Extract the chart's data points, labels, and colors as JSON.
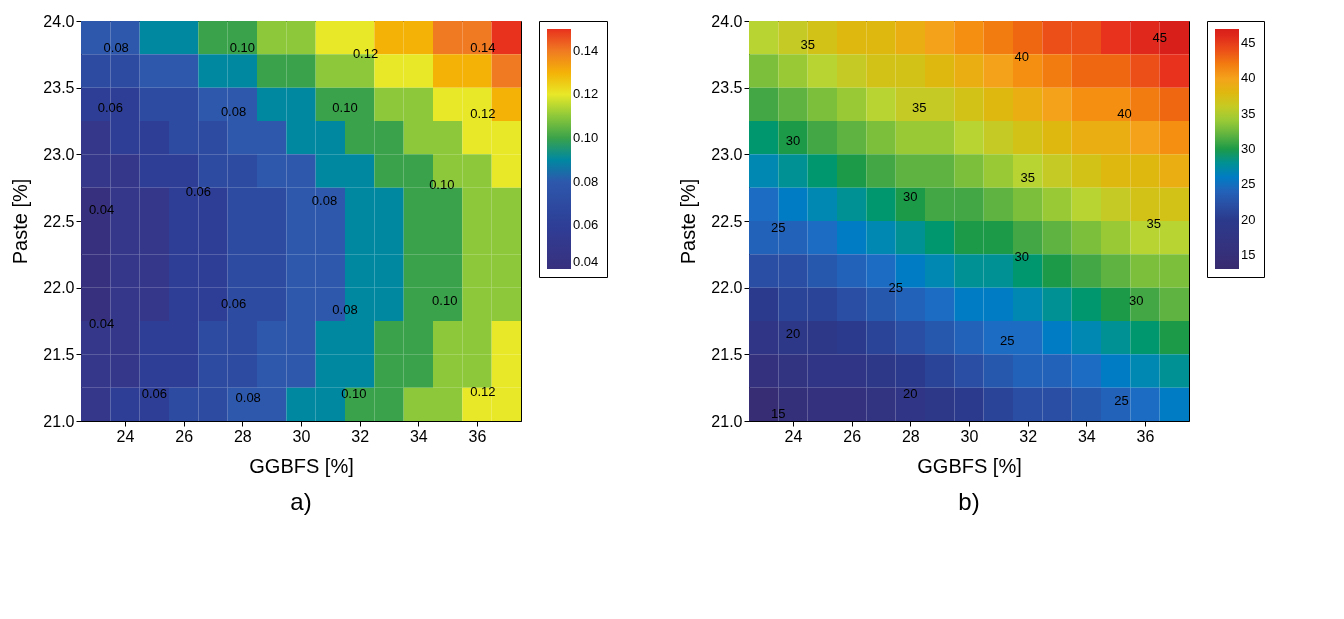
{
  "chart_data": [
    {
      "type": "heatmap",
      "xlabel": "GGBFS [%]",
      "ylabel": "Paste [%]",
      "clim": [
        0.04,
        0.15
      ],
      "annotations": [
        "a)",
        "0.08",
        "0.10",
        "0.12",
        "0.14",
        "0.06",
        "0.08",
        "0.10",
        "0.12",
        "0.06",
        "0.08",
        "0.10",
        "0.04",
        "0.06",
        "0.08",
        "0.10",
        "0.04",
        "0.06",
        "0.08",
        "0.10",
        "0.12"
      ],
      "x": [
        23,
        24,
        25,
        26,
        27,
        28,
        29,
        30,
        31,
        32,
        33,
        34,
        35,
        36,
        37
      ],
      "y": [
        23.875,
        23.625,
        23.375,
        23.125,
        22.875,
        22.625,
        22.375,
        22.125,
        21.875,
        21.625,
        21.375,
        21.125
      ],
      "cells": [
        [
          0.08,
          0.08,
          0.09,
          0.09,
          0.1,
          0.1,
          0.11,
          0.11,
          0.12,
          0.12,
          0.13,
          0.13,
          0.14,
          0.14,
          0.15
        ],
        [
          0.07,
          0.07,
          0.08,
          0.08,
          0.09,
          0.09,
          0.1,
          0.1,
          0.11,
          0.11,
          0.12,
          0.12,
          0.13,
          0.13,
          0.14
        ],
        [
          0.06,
          0.06,
          0.07,
          0.07,
          0.08,
          0.08,
          0.09,
          0.09,
          0.1,
          0.1,
          0.11,
          0.11,
          0.12,
          0.12,
          0.13
        ],
        [
          0.05,
          0.06,
          0.06,
          0.07,
          0.07,
          0.08,
          0.08,
          0.09,
          0.09,
          0.1,
          0.1,
          0.11,
          0.11,
          0.12,
          0.12
        ],
        [
          0.05,
          0.05,
          0.06,
          0.06,
          0.07,
          0.07,
          0.08,
          0.08,
          0.09,
          0.09,
          0.1,
          0.1,
          0.11,
          0.11,
          0.12
        ],
        [
          0.04,
          0.05,
          0.05,
          0.06,
          0.06,
          0.07,
          0.07,
          0.08,
          0.08,
          0.09,
          0.09,
          0.1,
          0.1,
          0.11,
          0.11
        ],
        [
          0.04,
          0.05,
          0.05,
          0.06,
          0.06,
          0.07,
          0.07,
          0.08,
          0.08,
          0.09,
          0.09,
          0.1,
          0.1,
          0.11,
          0.11
        ],
        [
          0.04,
          0.05,
          0.05,
          0.06,
          0.06,
          0.07,
          0.07,
          0.08,
          0.08,
          0.09,
          0.09,
          0.1,
          0.1,
          0.11,
          0.11
        ],
        [
          0.04,
          0.05,
          0.05,
          0.06,
          0.06,
          0.07,
          0.07,
          0.08,
          0.08,
          0.09,
          0.09,
          0.1,
          0.1,
          0.11,
          0.11
        ],
        [
          0.05,
          0.05,
          0.06,
          0.06,
          0.07,
          0.07,
          0.08,
          0.08,
          0.09,
          0.09,
          0.1,
          0.1,
          0.11,
          0.11,
          0.12
        ],
        [
          0.05,
          0.05,
          0.06,
          0.06,
          0.07,
          0.07,
          0.08,
          0.08,
          0.09,
          0.09,
          0.1,
          0.1,
          0.11,
          0.11,
          0.12
        ],
        [
          0.05,
          0.06,
          0.06,
          0.07,
          0.07,
          0.08,
          0.08,
          0.09,
          0.09,
          0.1,
          0.1,
          0.11,
          0.11,
          0.12,
          0.12
        ]
      ],
      "cticks": [
        0.04,
        0.06,
        0.08,
        {
          "value": 0.1,
          "label": "0.10"
        },
        0.12,
        0.14
      ],
      "colors": [
        "#37307e",
        "#2e3e96",
        "#2d58ac",
        "#3aa24a",
        "#e8e828",
        "#f07a22",
        "#e8321e"
      ],
      "xlim": [
        22.5,
        37.5
      ],
      "xticks": [
        24,
        26,
        28,
        30,
        32,
        34,
        36
      ],
      "ylim": [
        21,
        24
      ],
      "yticks": [
        {
          "value": 21,
          "label": "21.0"
        },
        21.5,
        {
          "value": 22,
          "label": "22.0"
        },
        22.5,
        {
          "value": 23,
          "label": "23.0"
        },
        23.5,
        {
          "value": 24,
          "label": "24.0"
        }
      ]
    },
    {
      "type": "heatmap",
      "xlabel": "GGBFS [%]",
      "ylabel": "Paste [%]",
      "clim": [
        13,
        47
      ],
      "annotations": [
        "b)",
        "35",
        "40",
        "45",
        "35",
        "40",
        "30",
        "35",
        "30",
        "35",
        "25",
        "30",
        "25",
        "30",
        "20",
        "25",
        "20",
        "25",
        "15"
      ],
      "x": [
        23,
        24,
        25,
        26,
        27,
        28,
        29,
        30,
        31,
        32,
        33,
        34,
        35,
        36,
        37
      ],
      "y": [
        23.875,
        23.625,
        23.375,
        23.125,
        22.875,
        22.625,
        22.375,
        22.125,
        21.875,
        21.625,
        21.375,
        21.125
      ],
      "cells": [
        [
          35,
          36,
          37,
          38,
          38,
          39,
          40,
          41,
          42,
          43,
          44,
          44,
          45,
          46,
          47
        ],
        [
          33,
          34,
          35,
          36,
          37,
          37,
          38,
          39,
          40,
          41,
          42,
          43,
          43,
          44,
          45
        ],
        [
          31,
          32,
          33,
          34,
          35,
          36,
          36,
          37,
          38,
          39,
          40,
          41,
          41,
          42,
          43
        ],
        [
          29,
          30,
          31,
          32,
          33,
          34,
          34,
          35,
          36,
          37,
          38,
          39,
          39,
          40,
          41
        ],
        [
          27,
          28,
          29,
          30,
          31,
          32,
          32,
          33,
          34,
          35,
          36,
          37,
          38,
          38,
          39
        ],
        [
          25,
          26,
          27,
          28,
          29,
          30,
          31,
          31,
          32,
          33,
          34,
          35,
          36,
          37,
          37
        ],
        [
          24,
          24,
          25,
          26,
          27,
          28,
          29,
          30,
          30,
          31,
          32,
          33,
          34,
          35,
          35
        ],
        [
          22,
          22,
          23,
          24,
          25,
          26,
          27,
          28,
          28,
          29,
          30,
          31,
          32,
          33,
          33
        ],
        [
          20,
          21,
          21,
          22,
          23,
          24,
          25,
          26,
          26,
          27,
          28,
          29,
          30,
          31,
          32
        ],
        [
          18,
          19,
          19,
          20,
          21,
          22,
          23,
          24,
          25,
          25,
          26,
          27,
          28,
          29,
          30
        ],
        [
          16,
          17,
          18,
          18,
          19,
          20,
          21,
          22,
          23,
          24,
          24,
          25,
          26,
          27,
          28
        ],
        [
          14,
          15,
          16,
          16,
          17,
          18,
          19,
          20,
          21,
          22,
          22,
          23,
          24,
          25,
          26
        ]
      ],
      "cticks": [
        15,
        20,
        25,
        30,
        35,
        40,
        45
      ],
      "colors": [
        "#382a6e",
        "#35307a",
        "#2b3a8c",
        "#1d6cc4",
        "#1d9a48",
        "#b7d433",
        "#f5a21b",
        "#e8321e",
        "#d81f1a"
      ],
      "xlim": [
        22.5,
        37.5
      ],
      "xticks": [
        24,
        26,
        28,
        30,
        32,
        34,
        36
      ],
      "ylim": [
        21,
        24
      ],
      "yticks": [
        {
          "value": 21,
          "label": "21.0"
        },
        21.5,
        {
          "value": 22,
          "label": "22.0"
        },
        22.5,
        {
          "value": 23,
          "label": "23.0"
        },
        23.5,
        {
          "value": 24,
          "label": "24.0"
        }
      ]
    }
  ]
}
